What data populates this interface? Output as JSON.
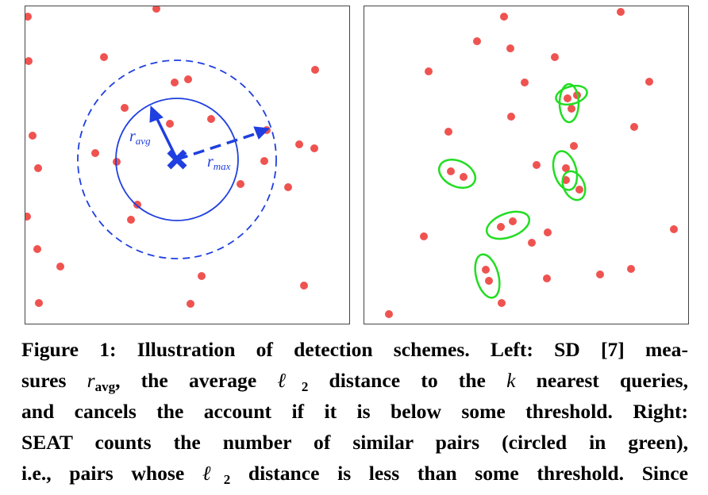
{
  "left_panel": {
    "labels": {
      "r_avg": "r",
      "r_avg_sub": "avg",
      "r_max": "r",
      "r_max_sub": "max"
    },
    "colors": {
      "point": "#ef5350",
      "scheme": "#1f3fe0",
      "pair": "#22dd22"
    },
    "center_marker": "x-icon"
  },
  "caption": {
    "line1_a": "Figure 1: Illustration of detection schemes. Left: SD [7] mea-",
    "line2_a": "sures ",
    "line2_r": "r",
    "line2_sub": "avg",
    "line2_b": ", the average ",
    "line2_l": "ℓ",
    "line2_lsub": "2",
    "line2_c": " distance to the ",
    "line2_k": "k",
    "line2_d": " nearest queries,",
    "line3": "and cancels the account if it is below some threshold. Right:",
    "line4": "SEAT counts the number of similar pairs (circled in green),",
    "line5_a": "i.e., pairs whose ",
    "line5_l": "ℓ",
    "line5_lsub": "2",
    "line5_b": " distance is less than some threshold. Since"
  }
}
